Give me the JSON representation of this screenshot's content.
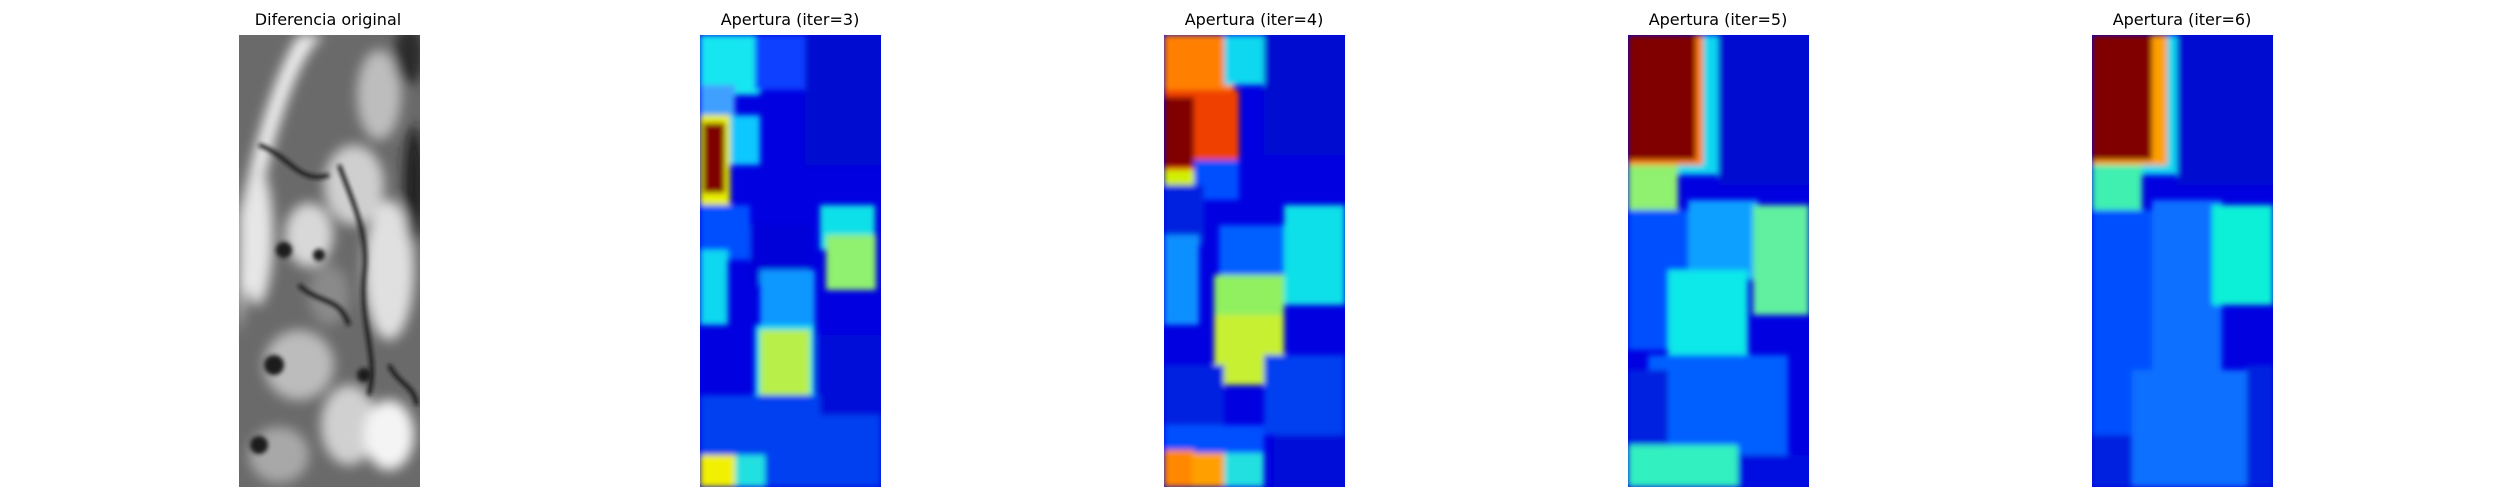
{
  "panels": [
    {
      "title": "Diferencia original",
      "colormap": "gray"
    },
    {
      "title": "Apertura (iter=3)",
      "colormap": "jet"
    },
    {
      "title": "Apertura (iter=4)",
      "colormap": "jet"
    },
    {
      "title": "Apertura (iter=5)",
      "colormap": "jet"
    },
    {
      "title": "Apertura (iter=6)",
      "colormap": "jet"
    }
  ]
}
